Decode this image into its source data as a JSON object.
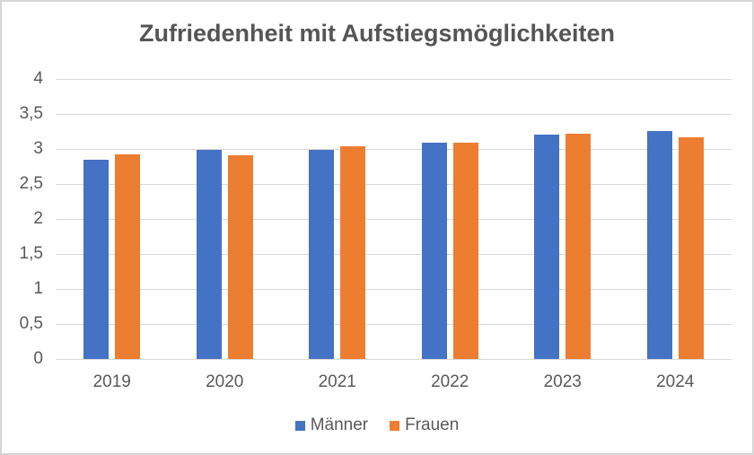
{
  "chart_data": {
    "type": "bar",
    "title": "Zufriedenheit mit Aufstiegsmöglichkeiten",
    "categories": [
      "2019",
      "2020",
      "2021",
      "2022",
      "2023",
      "2024"
    ],
    "series": [
      {
        "name": "Männer",
        "color": "#4472C4",
        "values": [
          2.84,
          2.99,
          2.99,
          3.09,
          3.21,
          3.26
        ]
      },
      {
        "name": "Frauen",
        "color": "#ED7D31",
        "values": [
          2.92,
          2.91,
          3.04,
          3.09,
          3.22,
          3.17
        ]
      }
    ],
    "ylim": [
      0,
      4
    ],
    "y_tick_step": 0.5,
    "y_tick_labels": [
      "0",
      "0,5",
      "1",
      "1,5",
      "2",
      "2,5",
      "3",
      "3,5",
      "4"
    ],
    "xlabel": "",
    "ylabel": "",
    "grid": true,
    "gridline_color": "#D9D9D9",
    "text_color": "#595959",
    "legend_position": "bottom"
  }
}
